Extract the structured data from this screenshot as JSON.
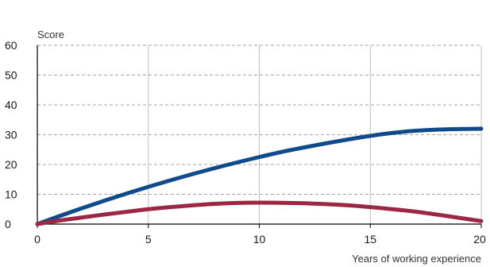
{
  "chart_data": {
    "type": "line",
    "title": "",
    "xlabel": "Years of working experience",
    "ylabel": "Score",
    "xlim": [
      0,
      20
    ],
    "ylim": [
      0,
      60
    ],
    "x_ticks": [
      0,
      5,
      10,
      15,
      20
    ],
    "y_ticks": [
      0,
      10,
      20,
      30,
      40,
      50,
      60
    ],
    "grid": {
      "horizontal": "dashed",
      "vertical": "solid"
    },
    "legend": "none",
    "x": [
      0,
      1,
      2,
      3,
      4,
      5,
      6,
      7,
      8,
      9,
      10,
      11,
      12,
      13,
      14,
      15,
      16,
      17,
      18,
      19,
      20
    ],
    "series": [
      {
        "color": "#0f4a8a",
        "values": [
          0,
          2.7,
          5.3,
          7.8,
          10.2,
          12.5,
          14.7,
          16.8,
          18.8,
          20.7,
          22.5,
          24.2,
          25.7,
          27.1,
          28.4,
          29.6,
          30.6,
          31.3,
          31.7,
          31.9,
          32.0
        ]
      },
      {
        "color": "#9b2743",
        "values": [
          0,
          1.2,
          2.2,
          3.2,
          4.1,
          5.0,
          5.7,
          6.3,
          6.8,
          7.1,
          7.2,
          7.15,
          7.0,
          6.7,
          6.3,
          5.7,
          5.0,
          4.2,
          3.2,
          2.1,
          1.0
        ]
      }
    ]
  }
}
